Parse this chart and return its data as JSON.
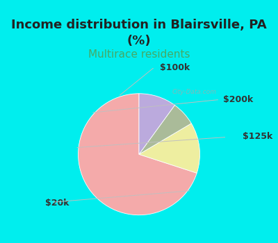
{
  "title": "Income distribution in Blairsville, PA\n(%)",
  "subtitle": "Multirace residents",
  "slices": [
    {
      "label": "$20k",
      "value": 70.0,
      "color": "#F4AAAA"
    },
    {
      "label": "$125k",
      "value": 13.5,
      "color": "#EEEEA0"
    },
    {
      "label": "$200k",
      "value": 6.5,
      "color": "#AABB99"
    },
    {
      "label": "$100k",
      "value": 10.0,
      "color": "#BBAADD"
    }
  ],
  "start_angle": 90,
  "title_fontsize": 13,
  "subtitle_fontsize": 11,
  "subtitle_color": "#44AA66",
  "title_color": "#222222",
  "bg_cyan": "#00EEEE",
  "bg_panel": "#E8F5EE",
  "watermark": "City-Data.com",
  "label_fontsize": 9,
  "label_color": "#333333"
}
